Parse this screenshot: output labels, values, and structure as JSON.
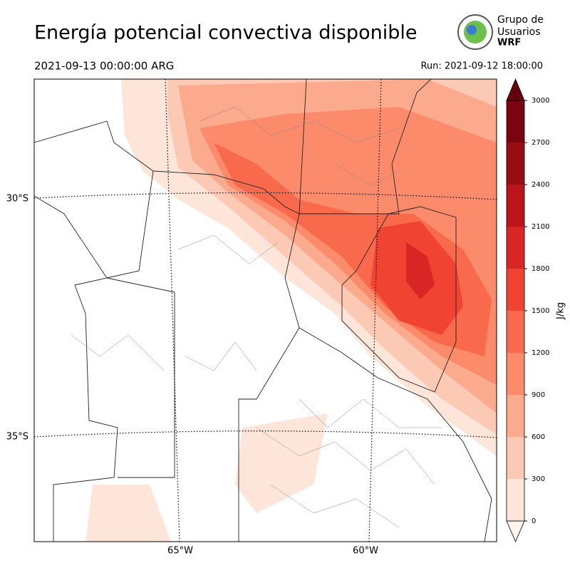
{
  "header": {
    "title": "Energía potencial convectiva disponible",
    "valid_time": "2021-09-13 00:00:00 ARG",
    "run": "Run: 2021-09-12 18:00:00"
  },
  "logo": {
    "line1": "Grupo de",
    "line2": "Usuarios",
    "line3": "WRF"
  },
  "map": {
    "lat_labels": [
      "30°S",
      "35°S"
    ],
    "lon_labels": [
      "65°W",
      "60°W"
    ]
  },
  "colorbar": {
    "label": "J/kg",
    "ticks": [
      0,
      300,
      600,
      900,
      1200,
      1500,
      1800,
      2100,
      2400,
      2700,
      3000
    ],
    "colors": [
      "#fee5d9",
      "#fcc9b4",
      "#fcaa8e",
      "#fc8b6c",
      "#f9694c",
      "#f14331",
      "#d92523",
      "#bc141a",
      "#980c13",
      "#7a0510"
    ],
    "under_color": "#fff5f0",
    "over_color": "#67000d"
  }
}
